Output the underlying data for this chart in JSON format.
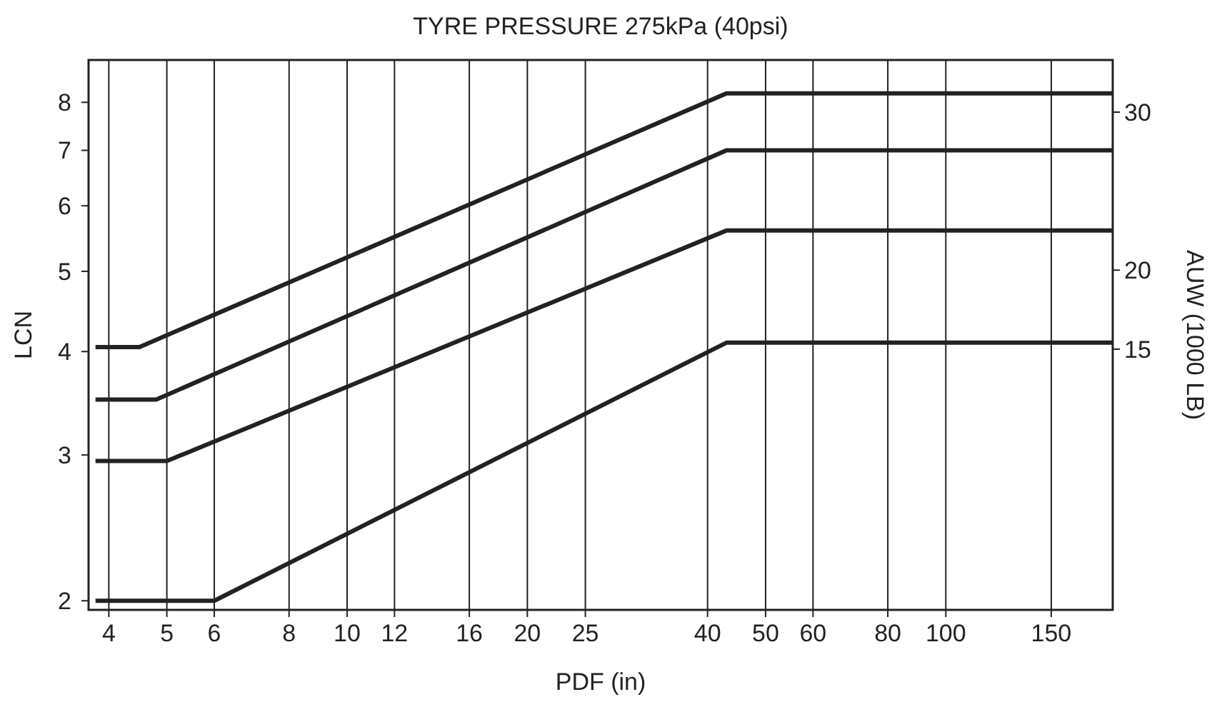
{
  "chart_data": {
    "type": "line",
    "title": "TYRE PRESSURE 275kPa (40psi)",
    "xlabel": "PDF (in)",
    "ylabel": "LCN",
    "y2label": "AUW (1000 LB)",
    "log": "xy",
    "grid": "x",
    "marker": "none",
    "line_style": "solid",
    "xlim": [
      3.7,
      190
    ],
    "xticks": [
      4,
      5,
      6,
      8,
      10,
      12,
      16,
      20,
      25,
      40,
      50,
      60,
      80,
      100,
      150
    ],
    "ylim": [
      1.95,
      9
    ],
    "yticks": [
      2,
      3,
      4,
      5,
      6,
      7,
      8
    ],
    "y2lim": [
      -1.5,
      33.3
    ],
    "y2ticks": [
      15,
      20,
      30
    ],
    "series": [
      {
        "color": "#222222",
        "x": [
          3.8,
          4.5,
          43,
          190
        ],
        "values": [
          4.05,
          4.05,
          8.2,
          8.2
        ]
      },
      {
        "color": "#222222",
        "x": [
          3.8,
          4.8,
          43,
          190
        ],
        "values": [
          3.5,
          3.5,
          7.0,
          7.0
        ]
      },
      {
        "color": "#222222",
        "x": [
          3.8,
          5,
          43,
          190
        ],
        "values": [
          2.95,
          2.95,
          5.6,
          5.6
        ]
      },
      {
        "color": "#222222",
        "x": [
          3.8,
          6,
          43,
          190
        ],
        "values": [
          2.0,
          2.0,
          4.1,
          4.1
        ]
      }
    ]
  }
}
